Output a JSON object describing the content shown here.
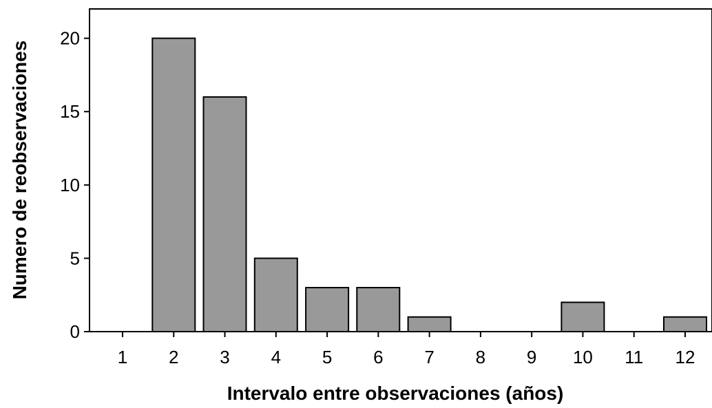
{
  "chart_data": {
    "type": "bar",
    "title": "",
    "xlabel": "Intervalo entre observaciones (años)",
    "ylabel": "Numero de reobservaciones",
    "categories": [
      "1",
      "2",
      "3",
      "4",
      "5",
      "6",
      "7",
      "8",
      "9",
      "10",
      "11",
      "12"
    ],
    "values": [
      0,
      20,
      16,
      5,
      3,
      3,
      1,
      0,
      0,
      2,
      0,
      1
    ],
    "ylim": [
      0,
      22
    ],
    "yticks": [
      0,
      5,
      10,
      15,
      20
    ],
    "grid": false,
    "legend": "none",
    "colors": {
      "bar_fill": "#999999",
      "bar_stroke": "#000000"
    }
  }
}
